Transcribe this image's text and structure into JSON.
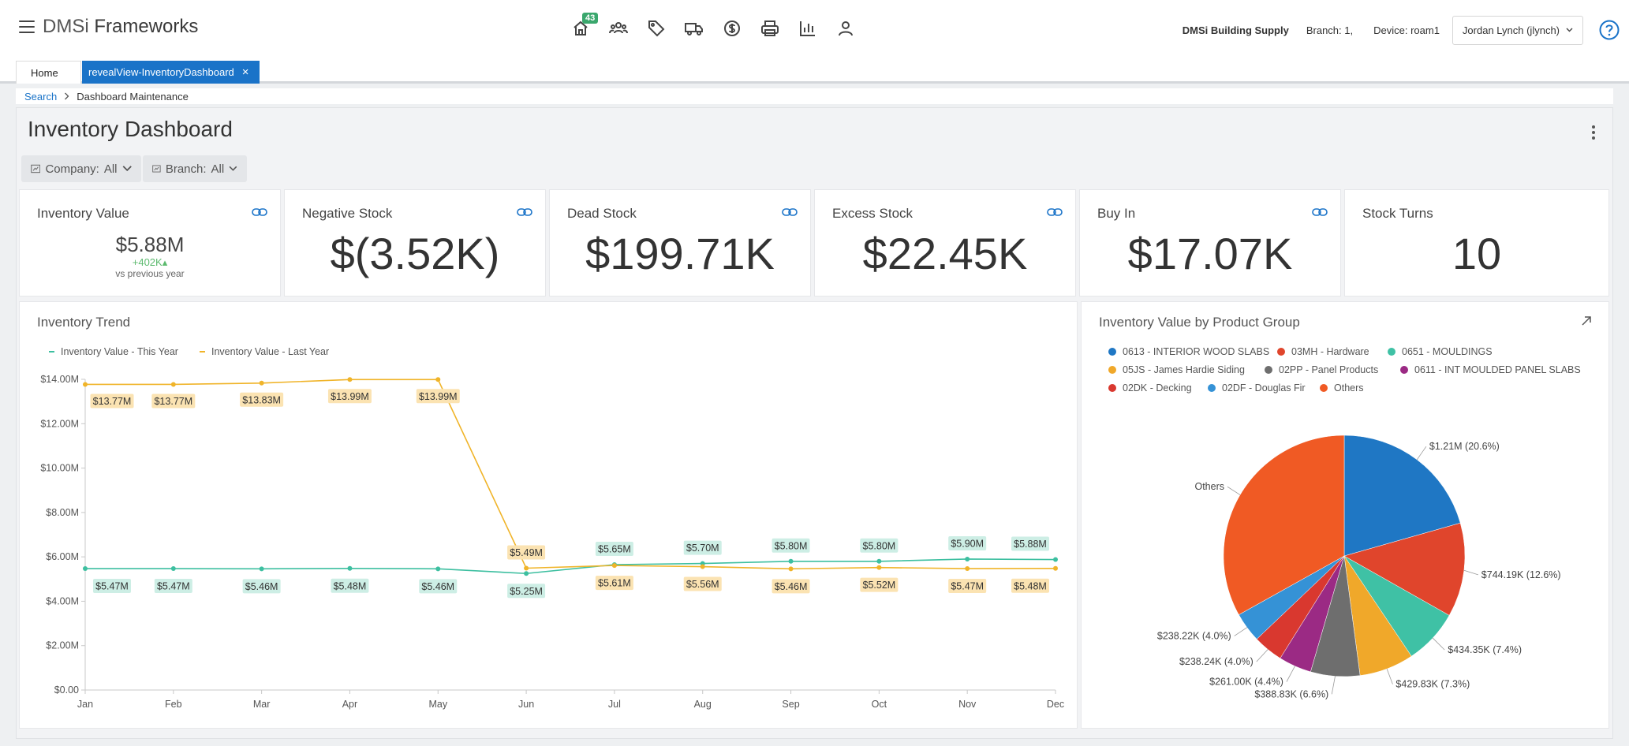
{
  "app": {
    "brand_prefix": "DMSi",
    "brand_name": "Frameworks",
    "notification_count": "43"
  },
  "header": {
    "company": "DMSi Building Supply",
    "branch": "Branch: 1,",
    "device": "Device: roam1",
    "user": "Jordan Lynch (jlynch)"
  },
  "nav_icons": [
    "home-icon",
    "team-icon",
    "tag-icon",
    "truck-icon",
    "dollar-icon",
    "printer-icon",
    "bar-chart-icon",
    "person-icon"
  ],
  "tabs": [
    {
      "label": "Home",
      "active": false
    },
    {
      "label": "revealView-InventoryDashboard",
      "active": true,
      "close": "×"
    }
  ],
  "breadcrumb": {
    "link": "Search",
    "current": "Dashboard Maintenance"
  },
  "dashboard": {
    "title": "Inventory Dashboard",
    "filters": [
      {
        "label": "Company:",
        "value": "All"
      },
      {
        "label": "Branch:",
        "value": "All"
      }
    ],
    "kpis": [
      {
        "title": "Inventory Value",
        "value": "$5.88M",
        "delta": "+402K▴",
        "sub": "vs previous year"
      },
      {
        "title": "Negative Stock",
        "value": "$(3.52K)"
      },
      {
        "title": "Dead Stock",
        "value": "$199.71K"
      },
      {
        "title": "Excess Stock",
        "value": "$22.45K"
      },
      {
        "title": "Buy In",
        "value": "$17.07K"
      },
      {
        "title": "Stock Turns",
        "value": "10"
      }
    ]
  },
  "colors": {
    "accent": "#1a73c8",
    "this_year": "#3dbfa0",
    "last_year": "#f0b429"
  },
  "chart_data": [
    {
      "type": "line",
      "title": "Inventory Trend",
      "categories": [
        "Jan",
        "Feb",
        "Mar",
        "Apr",
        "May",
        "Jun",
        "Jul",
        "Aug",
        "Sep",
        "Oct",
        "Nov",
        "Dec"
      ],
      "ylim": [
        0,
        14
      ],
      "yticks": [
        "$0.00",
        "$2.00M",
        "$4.00M",
        "$6.00M",
        "$8.00M",
        "$10.00M",
        "$12.00M",
        "$14.00M"
      ],
      "series": [
        {
          "name": "Inventory Value - This Year",
          "color": "#3dbfa0",
          "values": [
            5.47,
            5.47,
            5.46,
            5.48,
            5.46,
            5.25,
            5.65,
            5.7,
            5.8,
            5.8,
            5.9,
            5.88
          ],
          "labels": [
            "$5.47M",
            "$5.47M",
            "$5.46M",
            "$5.48M",
            "$5.46M",
            "$5.25M",
            "$5.65M",
            "$5.70M",
            "$5.80M",
            "$5.80M",
            "$5.90M",
            "$5.88M"
          ]
        },
        {
          "name": "Inventory Value - Last Year",
          "color": "#f0b429",
          "values": [
            13.77,
            13.77,
            13.83,
            13.99,
            13.99,
            5.49,
            5.61,
            5.56,
            5.46,
            5.52,
            5.47,
            5.48
          ],
          "labels": [
            "$13.77M",
            "$13.77M",
            "$13.83M",
            "$13.99M",
            "$13.99M",
            "$5.49M",
            "$5.61M",
            "$5.56M",
            "$5.46M",
            "$5.52M",
            "$5.47M",
            "$5.48M"
          ]
        }
      ]
    },
    {
      "type": "pie",
      "title": "Inventory Value by Product Group",
      "legend": [
        {
          "name": "0613 - INTERIOR WOOD SLABS",
          "color": "#1f77c4"
        },
        {
          "name": "03MH - Hardware",
          "color": "#e0452c"
        },
        {
          "name": "0651 - MOULDINGS",
          "color": "#3fc1a5"
        },
        {
          "name": "05JS - James Hardie Siding",
          "color": "#f0a82a"
        },
        {
          "name": "02PP - Panel Products",
          "color": "#6e6e6e"
        },
        {
          "name": "0611 - INT MOULDED PANEL SLABS",
          "color": "#9b2a84"
        },
        {
          "name": "02DK - Decking",
          "color": "#d9382f"
        },
        {
          "name": "02DF - Douglas Fir",
          "color": "#3592d6"
        },
        {
          "name": "Others",
          "color": "#f05a24"
        }
      ],
      "slices": [
        {
          "name": "0613 - INTERIOR WOOD SLABS",
          "percent": 20.6,
          "label": "$1.21M (20.6%)",
          "color": "#1f77c4"
        },
        {
          "name": "03MH - Hardware",
          "percent": 12.6,
          "label": "$744.19K (12.6%)",
          "color": "#e0452c"
        },
        {
          "name": "0651 - MOULDINGS",
          "percent": 7.4,
          "label": "$434.35K (7.4%)",
          "color": "#3fc1a5"
        },
        {
          "name": "05JS - James Hardie Siding",
          "percent": 7.3,
          "label": "$429.83K (7.3%)",
          "color": "#f0a82a"
        },
        {
          "name": "02PP - Panel Products",
          "percent": 6.6,
          "label": "$388.83K (6.6%)",
          "color": "#6e6e6e"
        },
        {
          "name": "0611 - INT MOULDED PANEL SLABS",
          "percent": 4.4,
          "label": "$261.00K (4.4%)",
          "color": "#9b2a84"
        },
        {
          "name": "02DK - Decking",
          "percent": 4.0,
          "label": "$238.24K (4.0%)",
          "color": "#d9382f"
        },
        {
          "name": "02DF - Douglas Fir",
          "percent": 4.0,
          "label": "$238.22K (4.0%)",
          "color": "#3592d6"
        },
        {
          "name": "Others",
          "percent": 33.1,
          "label": "Others",
          "color": "#f05a24"
        }
      ]
    }
  ]
}
